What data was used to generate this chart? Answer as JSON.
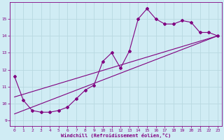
{
  "xlabel": "Windchill (Refroidissement éolien,°C)",
  "bg_color": "#d0ecf4",
  "grid_color": "#b8d8e0",
  "line_color": "#800080",
  "xlim": [
    -0.5,
    23.5
  ],
  "ylim": [
    8.7,
    16.0
  ],
  "xticks": [
    0,
    1,
    2,
    3,
    4,
    5,
    6,
    7,
    8,
    9,
    10,
    11,
    12,
    13,
    14,
    15,
    16,
    17,
    18,
    19,
    20,
    21,
    22,
    23
  ],
  "yticks": [
    9,
    10,
    11,
    12,
    13,
    14,
    15
  ],
  "line1_x": [
    0,
    1,
    2,
    3,
    4,
    5,
    6,
    7,
    8,
    9,
    10,
    11,
    12,
    13,
    14,
    15,
    16,
    17,
    18,
    19,
    20,
    21,
    22,
    23
  ],
  "line1_y": [
    11.6,
    10.2,
    9.6,
    9.5,
    9.5,
    9.6,
    9.8,
    10.3,
    10.8,
    11.1,
    12.5,
    13.0,
    12.1,
    13.1,
    15.0,
    15.6,
    15.0,
    14.7,
    14.7,
    14.9,
    14.8,
    14.2,
    14.2,
    14.0
  ],
  "line2_x": [
    0,
    23
  ],
  "line2_y": [
    9.4,
    14.0
  ],
  "line3_x": [
    0,
    23
  ],
  "line3_y": [
    10.4,
    14.0
  ],
  "tick_fontsize": 4.5,
  "xlabel_fontsize": 5.0
}
